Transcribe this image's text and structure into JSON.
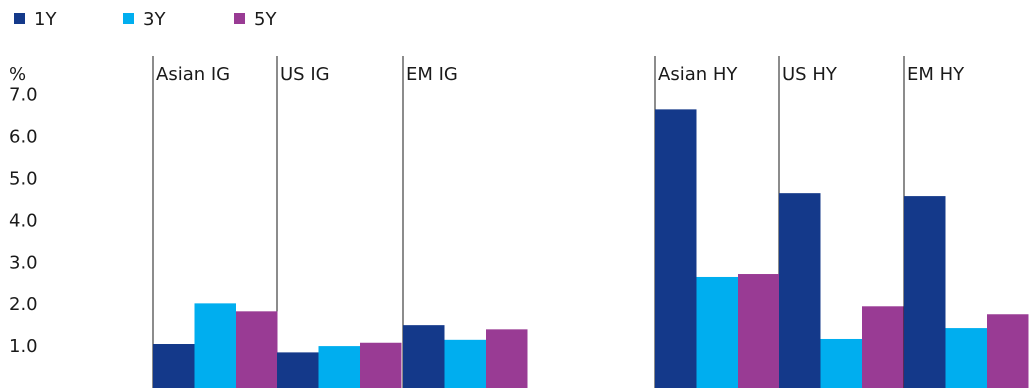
{
  "chart_data": {
    "type": "bar",
    "ylabel": "%",
    "ylim": [
      0,
      7.4
    ],
    "y_ticks": [
      1.0,
      2.0,
      3.0,
      4.0,
      5.0,
      6.0,
      7.0
    ],
    "y_tick_labels": [
      "1.0",
      "2.0",
      "3.0",
      "4.0",
      "5.0",
      "6.0",
      "7.0"
    ],
    "legend_position": "top-left",
    "grid": false,
    "categories": [
      "Asian IG",
      "US IG",
      "EM IG",
      "Asian HY",
      "US HY",
      "EM HY"
    ],
    "series": [
      {
        "name": "1Y",
        "color": "#14398a",
        "values": [
          1.05,
          0.85,
          1.5,
          6.65,
          4.65,
          4.58
        ]
      },
      {
        "name": "3Y",
        "color": "#00aeef",
        "values": [
          2.02,
          1.0,
          1.15,
          2.65,
          1.17,
          1.43
        ]
      },
      {
        "name": "5Y",
        "color": "#993b94",
        "values": [
          1.83,
          1.08,
          1.4,
          2.72,
          1.95,
          1.76
        ]
      }
    ]
  }
}
